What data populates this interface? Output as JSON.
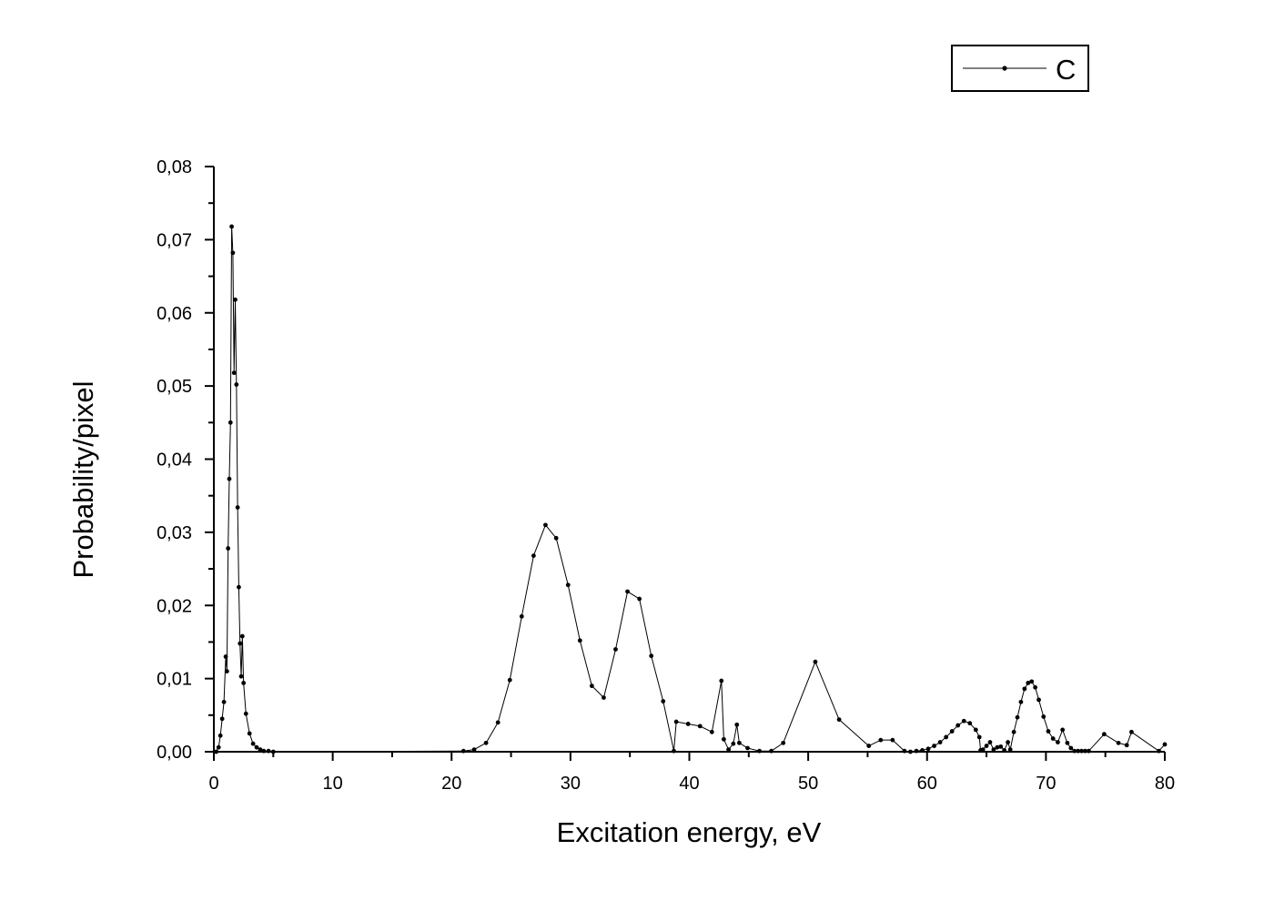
{
  "chart_data": {
    "type": "line",
    "title": "",
    "xlabel": "Excitation energy, eV",
    "ylabel": "Probability/pixel",
    "xlim": [
      0,
      80
    ],
    "ylim": [
      0,
      0.08
    ],
    "x_ticks": [
      0,
      10,
      20,
      30,
      40,
      50,
      60,
      70,
      80
    ],
    "x_tick_labels": [
      "0",
      "10",
      "20",
      "30",
      "40",
      "50",
      "60",
      "70",
      "80"
    ],
    "y_ticks": [
      0,
      0.01,
      0.02,
      0.03,
      0.04,
      0.05,
      0.06,
      0.07,
      0.08
    ],
    "y_tick_labels": [
      "0,00",
      "0,01",
      "0,02",
      "0,03",
      "0,04",
      "0,05",
      "0,06",
      "0,07",
      "0,08"
    ],
    "grid": false,
    "legend_position": "top-right",
    "series": [
      {
        "name": "C",
        "color": "#000000",
        "marker": "dot",
        "x": [
          0.2,
          0.4,
          0.55,
          0.7,
          0.85,
          1.0,
          1.1,
          1.2,
          1.3,
          1.4,
          1.5,
          1.6,
          1.7,
          1.8,
          1.9,
          2.0,
          2.1,
          2.2,
          2.3,
          2.4,
          2.5,
          2.7,
          3.0,
          3.3,
          3.6,
          3.9,
          4.2,
          4.6,
          5.0,
          21.0,
          21.9,
          22.9,
          23.9,
          24.9,
          25.9,
          26.9,
          27.9,
          28.8,
          29.8,
          30.8,
          31.8,
          32.8,
          33.8,
          34.8,
          35.8,
          36.8,
          37.8,
          38.7,
          38.9,
          39.9,
          40.9,
          41.9,
          42.7,
          42.9,
          43.3,
          43.7,
          44.0,
          44.2,
          44.9,
          45.9,
          46.9,
          47.9,
          50.6,
          52.6,
          55.1,
          56.1,
          57.1,
          58.1,
          58.6,
          59.1,
          59.6,
          60.1,
          60.6,
          61.1,
          61.6,
          62.1,
          62.6,
          63.1,
          63.6,
          64.1,
          64.4,
          64.5,
          64.7,
          65.0,
          65.3,
          65.6,
          65.9,
          66.2,
          66.5,
          66.8,
          67.0,
          67.3,
          67.6,
          67.9,
          68.2,
          68.5,
          68.8,
          69.1,
          69.4,
          69.8,
          70.2,
          70.6,
          71.0,
          71.4,
          71.8,
          72.1,
          72.4,
          72.7,
          73.0,
          73.3,
          73.6,
          74.9,
          76.1,
          76.8,
          77.2,
          79.5,
          80.0
        ],
        "y": [
          0.0,
          0.0006,
          0.0022,
          0.0045,
          0.0068,
          0.013,
          0.011,
          0.0278,
          0.0373,
          0.045,
          0.0718,
          0.0682,
          0.0518,
          0.0618,
          0.0502,
          0.0334,
          0.0225,
          0.0148,
          0.0103,
          0.0158,
          0.0094,
          0.0052,
          0.0025,
          0.0011,
          0.0006,
          0.0003,
          0.0001,
          0.0001,
          0.0,
          0.0001,
          0.0003,
          0.0012,
          0.004,
          0.0098,
          0.0185,
          0.0268,
          0.031,
          0.0292,
          0.0228,
          0.0152,
          0.009,
          0.0074,
          0.014,
          0.0219,
          0.0209,
          0.0131,
          0.0069,
          0.0001,
          0.0041,
          0.0038,
          0.0035,
          0.0027,
          0.0097,
          0.0017,
          0.0003,
          0.0011,
          0.0037,
          0.0012,
          0.0005,
          0.0001,
          0.0001,
          0.0012,
          0.0123,
          0.0044,
          0.0008,
          0.0016,
          0.0016,
          0.0001,
          0.0,
          0.0001,
          0.0002,
          0.0004,
          0.0008,
          0.0013,
          0.002,
          0.0028,
          0.0036,
          0.0042,
          0.0039,
          0.003,
          0.002,
          0.0002,
          0.0003,
          0.0008,
          0.0013,
          0.0003,
          0.0006,
          0.0007,
          0.0002,
          0.0013,
          0.0003,
          0.0027,
          0.0047,
          0.0068,
          0.0086,
          0.0094,
          0.0096,
          0.0088,
          0.0071,
          0.0048,
          0.0028,
          0.0018,
          0.0013,
          0.003,
          0.0012,
          0.0005,
          0.0001,
          0.0001,
          0.0001,
          0.0001,
          0.0001,
          0.0024,
          0.0012,
          0.0009,
          0.0027,
          0.0001,
          0.001
        ]
      }
    ]
  }
}
